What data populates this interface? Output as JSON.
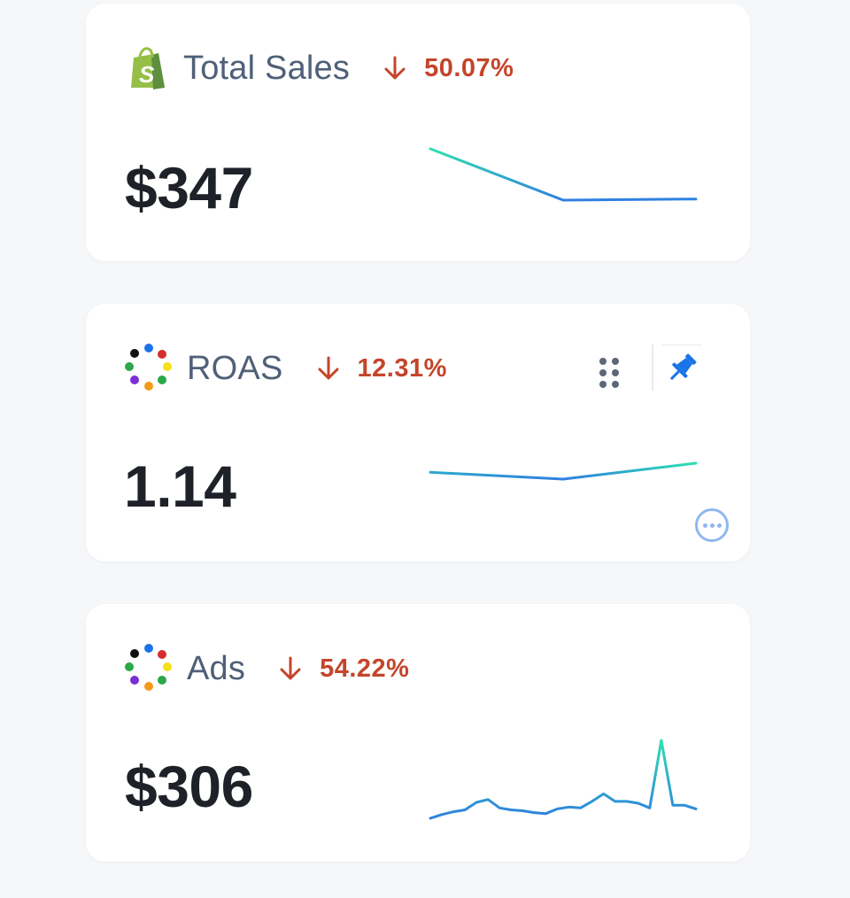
{
  "cards": [
    {
      "title": "Total Sales",
      "change_pct": "50.07%",
      "change_direction": "down",
      "value": "$347",
      "logo_icon": "shopify-icon",
      "sparkline": [
        100,
        57,
        58
      ]
    },
    {
      "title": "ROAS",
      "change_pct": "12.31%",
      "change_direction": "down",
      "value": "1.14",
      "logo_icon": "multicolor-dots-icon",
      "sparkline": [
        1.16,
        1.13,
        1.2
      ]
    },
    {
      "title": "Ads",
      "change_pct": "54.22%",
      "change_direction": "down",
      "value": "$306",
      "logo_icon": "multicolor-dots-icon",
      "sparkline": [
        2,
        6,
        9,
        11,
        19,
        22,
        13,
        11,
        10,
        8,
        7,
        12,
        14,
        13,
        20,
        28,
        20,
        20,
        18,
        13,
        85,
        16,
        16,
        12
      ]
    }
  ],
  "colors": {
    "title": "#4f6078",
    "negative_change": "#c4452a",
    "value": "#1e2228",
    "spark_start": "#2de0b0",
    "spark_end": "#2f7fe0",
    "pin": "#1a73e8"
  }
}
